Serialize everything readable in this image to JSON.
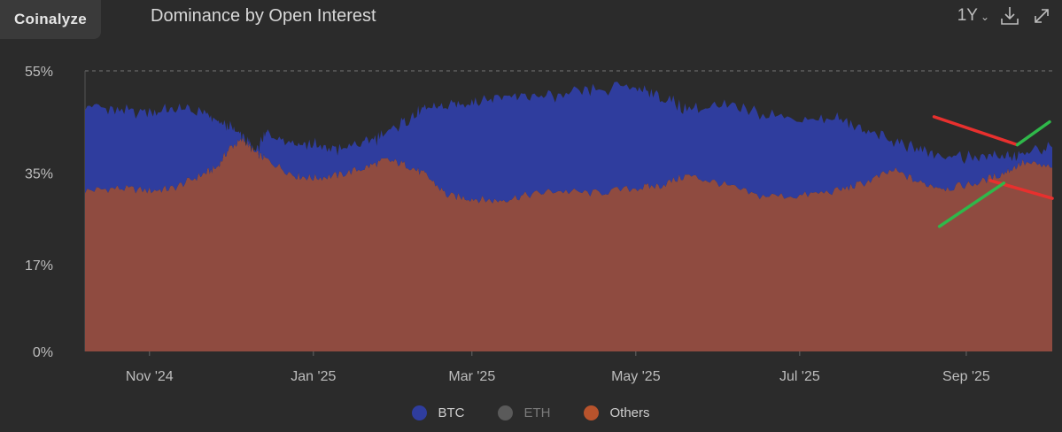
{
  "brand": "Coinalyze",
  "header": {
    "title": "Dominance by Open Interest"
  },
  "toolbar": {
    "range_label": "1Y",
    "download_icon": "download-icon",
    "expand_icon": "expand-icon"
  },
  "legend": [
    {
      "name": "BTC",
      "color": "#2f3d9e",
      "active": true
    },
    {
      "name": "ETH",
      "color": "#5a5a5a",
      "active": false
    },
    {
      "name": "Others",
      "color": "#b8532c",
      "active": true
    }
  ],
  "annotation_colors": {
    "red": "#e8302e",
    "green": "#2fb84a"
  },
  "chart_data": {
    "type": "area",
    "stacked": true,
    "title": "Dominance by Open Interest",
    "x_range": [
      "2024-10-08",
      "2025-10-03"
    ],
    "x_ticks": [
      {
        "label": "Nov '24",
        "date": "2024-11-01"
      },
      {
        "label": "Jan '25",
        "date": "2025-01-01"
      },
      {
        "label": "Mar '25",
        "date": "2025-03-01"
      },
      {
        "label": "May '25",
        "date": "2025-05-01"
      },
      {
        "label": "Jul '25",
        "date": "2025-07-01"
      },
      {
        "label": "Sep '25",
        "date": "2025-09-01"
      }
    ],
    "y_ticks": [
      {
        "label": "0%",
        "value": 0
      },
      {
        "label": "17%",
        "value": 17
      },
      {
        "label": "35%",
        "value": 35
      },
      {
        "label": "55%",
        "value": 55
      }
    ],
    "ylim": [
      0,
      55
    ],
    "y_unit": "%",
    "grid": "top dashed line only",
    "legend_position": "bottom-center",
    "series": [
      {
        "name": "Others",
        "color": "#8f4b40",
        "points": [
          [
            "2024-10-08",
            31.5
          ],
          [
            "2024-10-20",
            32.0
          ],
          [
            "2024-11-01",
            31.5
          ],
          [
            "2024-11-10",
            32.0
          ],
          [
            "2024-11-20",
            34.5
          ],
          [
            "2024-11-26",
            36.0
          ],
          [
            "2024-12-01",
            40.0
          ],
          [
            "2024-12-06",
            41.5
          ],
          [
            "2024-12-10",
            39.0
          ],
          [
            "2024-12-15",
            37.5
          ],
          [
            "2024-12-25",
            34.5
          ],
          [
            "2025-01-01",
            34.0
          ],
          [
            "2025-01-10",
            34.5
          ],
          [
            "2025-01-20",
            36.0
          ],
          [
            "2025-01-28",
            37.5
          ],
          [
            "2025-02-05",
            36.5
          ],
          [
            "2025-02-12",
            34.5
          ],
          [
            "2025-02-20",
            30.5
          ],
          [
            "2025-03-01",
            30.0
          ],
          [
            "2025-03-10",
            29.5
          ],
          [
            "2025-03-20",
            30.5
          ],
          [
            "2025-04-01",
            31.5
          ],
          [
            "2025-04-15",
            31.0
          ],
          [
            "2025-05-01",
            32.0
          ],
          [
            "2025-05-10",
            32.5
          ],
          [
            "2025-05-20",
            34.5
          ],
          [
            "2025-06-01",
            33.0
          ],
          [
            "2025-06-15",
            30.5
          ],
          [
            "2025-07-01",
            30.5
          ],
          [
            "2025-07-15",
            31.5
          ],
          [
            "2025-07-25",
            33.0
          ],
          [
            "2025-08-05",
            35.5
          ],
          [
            "2025-08-15",
            33.0
          ],
          [
            "2025-08-25",
            32.0
          ],
          [
            "2025-09-05",
            33.0
          ],
          [
            "2025-09-15",
            35.0
          ],
          [
            "2025-09-22",
            37.0
          ],
          [
            "2025-10-03",
            36.0
          ]
        ]
      },
      {
        "name": "BTC",
        "color": "#2f3d9e",
        "points": [
          [
            "2024-10-08",
            17.0
          ],
          [
            "2024-10-20",
            15.0
          ],
          [
            "2024-11-01",
            15.5
          ],
          [
            "2024-11-10",
            15.5
          ],
          [
            "2024-11-20",
            12.5
          ],
          [
            "2024-11-26",
            9.0
          ],
          [
            "2024-12-01",
            4.0
          ],
          [
            "2024-12-06",
            0.5
          ],
          [
            "2024-12-10",
            0.0
          ],
          [
            "2024-12-15",
            5.5
          ],
          [
            "2024-12-25",
            6.5
          ],
          [
            "2025-01-01",
            6.5
          ],
          [
            "2025-01-10",
            5.0
          ],
          [
            "2025-01-20",
            5.0
          ],
          [
            "2025-01-28",
            5.0
          ],
          [
            "2025-02-05",
            9.0
          ],
          [
            "2025-02-12",
            13.0
          ],
          [
            "2025-02-20",
            17.5
          ],
          [
            "2025-03-01",
            19.0
          ],
          [
            "2025-03-10",
            20.5
          ],
          [
            "2025-03-20",
            19.5
          ],
          [
            "2025-04-01",
            18.5
          ],
          [
            "2025-04-15",
            20.0
          ],
          [
            "2025-05-01",
            20.0
          ],
          [
            "2025-05-10",
            17.5
          ],
          [
            "2025-05-20",
            13.0
          ],
          [
            "2025-06-01",
            15.0
          ],
          [
            "2025-06-15",
            16.5
          ],
          [
            "2025-07-01",
            15.0
          ],
          [
            "2025-07-15",
            14.0
          ],
          [
            "2025-07-25",
            10.5
          ],
          [
            "2025-08-05",
            5.5
          ],
          [
            "2025-08-15",
            6.5
          ],
          [
            "2025-08-25",
            6.5
          ],
          [
            "2025-09-05",
            5.0
          ],
          [
            "2025-09-15",
            3.5
          ],
          [
            "2025-09-22",
            1.5
          ],
          [
            "2025-10-03",
            4.0
          ]
        ]
      }
    ],
    "annotations": [
      {
        "color": "red",
        "from": [
          "2025-08-20",
          46.0
        ],
        "to": [
          "2025-09-20",
          40.5
        ]
      },
      {
        "color": "red",
        "from": [
          "2025-09-10",
          33.5
        ],
        "to": [
          "2025-10-03",
          30.0
        ]
      },
      {
        "color": "green",
        "from": [
          "2025-08-22",
          24.5
        ],
        "to": [
          "2025-09-15",
          33.0
        ]
      },
      {
        "color": "green",
        "from": [
          "2025-09-20",
          40.5
        ],
        "to": [
          "2025-10-02",
          45.0
        ]
      }
    ]
  }
}
